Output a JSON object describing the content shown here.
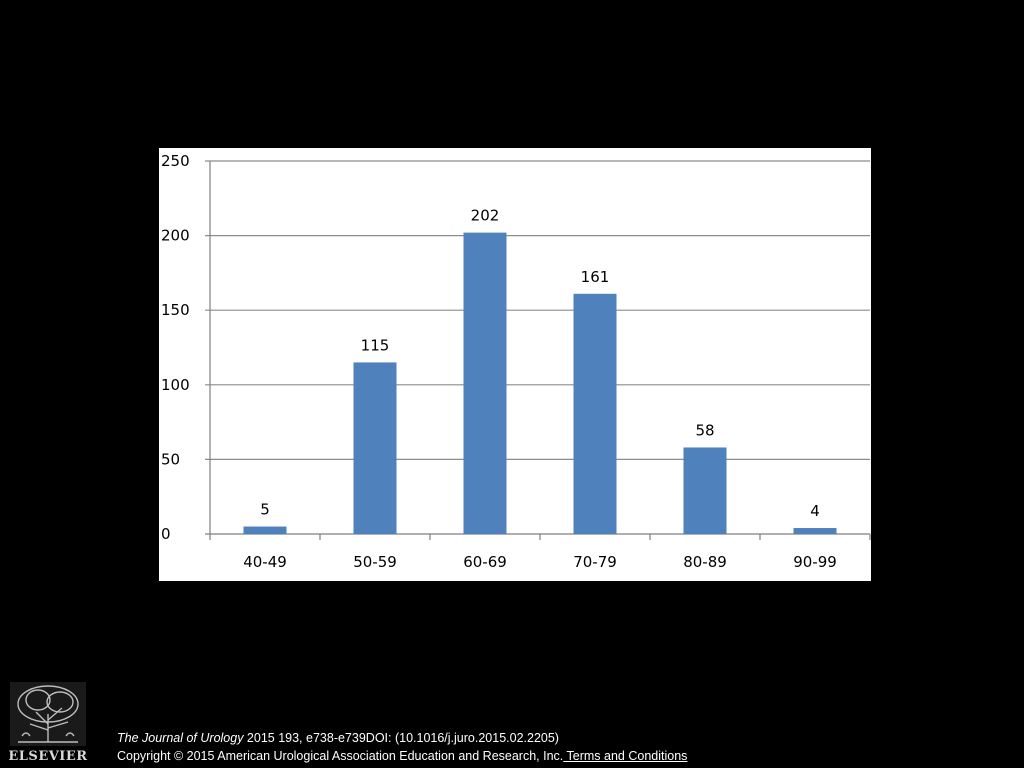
{
  "chart_data": {
    "type": "bar",
    "categories": [
      "40-49",
      "50-59",
      "60-69",
      "70-79",
      "80-89",
      "90-99"
    ],
    "values": [
      5,
      115,
      202,
      161,
      58,
      4
    ],
    "title": "",
    "xlabel": "",
    "ylabel": "",
    "ylim": [
      0,
      250
    ],
    "yticks": [
      0,
      50,
      100,
      150,
      200,
      250
    ],
    "grid": true,
    "legend": "none",
    "bar_color": "#4f81bd",
    "data_labels": [
      "5",
      "115",
      "202",
      "161",
      "58",
      "4"
    ]
  },
  "colors": {
    "background": "#000000",
    "panel": "#ffffff",
    "bar": "#4f81bd",
    "gridline": "#8c8c8c"
  },
  "footer": {
    "logo_text": "ELSEVIER",
    "journal": "The Journal of Urology",
    "citation_rest": " 2015 193, e738-e739DOI: (10.1016/j.juro.2015.02.2205)",
    "copyright": "Copyright © 2015 American Urological Association Education and Research, Inc.",
    "terms_link": " Terms and Conditions"
  }
}
